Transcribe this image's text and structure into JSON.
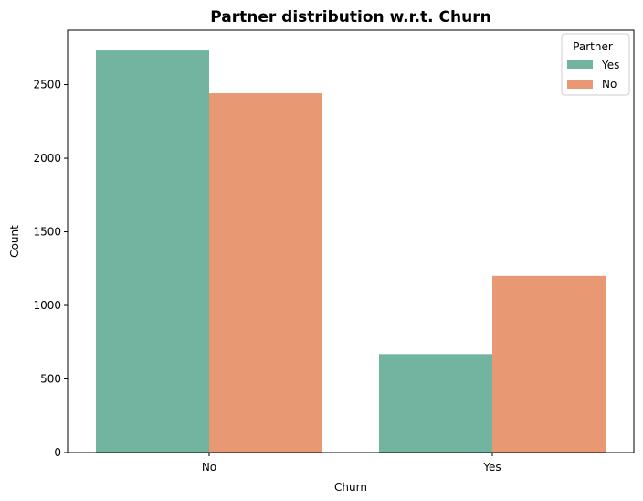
{
  "chart_data": {
    "type": "bar",
    "title": "Partner distribution w.r.t. Churn",
    "xlabel": "Churn",
    "ylabel": "Count",
    "categories": [
      "No",
      "Yes"
    ],
    "series": [
      {
        "name": "Yes",
        "values": [
          2733,
          669
        ],
        "color": "#72b4a0"
      },
      {
        "name": "No",
        "values": [
          2441,
          1200
        ],
        "color": "#e89873"
      }
    ],
    "ylim": [
      0,
      2870
    ],
    "yticks": [
      0,
      500,
      1000,
      1500,
      2000,
      2500
    ],
    "grid": false,
    "legend": {
      "title": "Partner",
      "placement": "top-right"
    }
  }
}
